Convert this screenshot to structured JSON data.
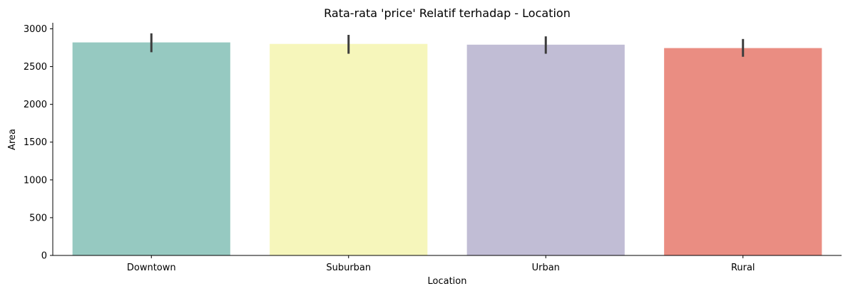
{
  "chart_data": {
    "type": "bar",
    "title": "Rata-rata 'price' Relatif terhadap - Location",
    "xlabel": "Location",
    "ylabel": "Area",
    "categories": [
      "Downtown",
      "Suburban",
      "Urban",
      "Rural"
    ],
    "values": [
      2820,
      2800,
      2790,
      2745
    ],
    "error_bars": [
      {
        "low": 2690,
        "high": 2940
      },
      {
        "low": 2670,
        "high": 2920
      },
      {
        "low": 2670,
        "high": 2900
      },
      {
        "low": 2630,
        "high": 2865
      }
    ],
    "colors": [
      "#96c9c1",
      "#f6f6bb",
      "#c1bdd5",
      "#ea8d82"
    ],
    "error_bar_color": "#3c3c3c",
    "ylim": [
      0,
      3080
    ],
    "yticks": [
      0,
      500,
      1000,
      1500,
      2000,
      2500,
      3000
    ],
    "grid": false,
    "legend": "none"
  }
}
